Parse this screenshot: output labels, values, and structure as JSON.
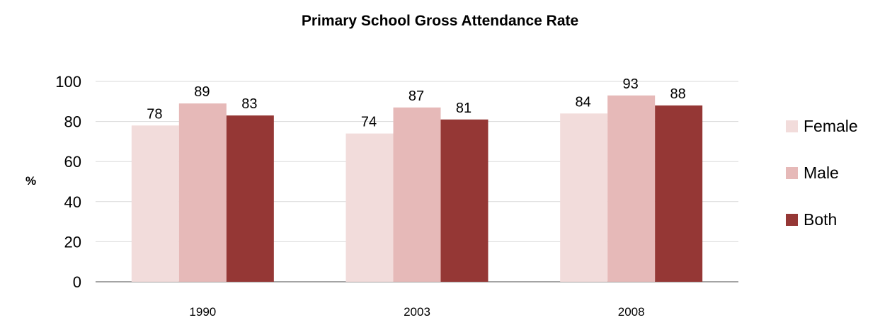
{
  "chart_data": {
    "type": "bar",
    "title": "Primary School Gross Attendance Rate",
    "ylabel": "%",
    "xlabel": "",
    "categories": [
      "1990",
      "2003",
      "2008"
    ],
    "series": [
      {
        "name": "Female",
        "values": [
          78,
          74,
          84
        ],
        "color": "#f2dcdb"
      },
      {
        "name": "Male",
        "values": [
          89,
          87,
          93
        ],
        "color": "#e6b9b8"
      },
      {
        "name": "Both",
        "values": [
          83,
          81,
          88
        ],
        "color": "#953735"
      }
    ],
    "ylim": [
      0,
      100
    ],
    "yticks": [
      "0",
      "20",
      "40",
      "60",
      "80",
      "100"
    ],
    "grid": true,
    "legend_position": "right"
  }
}
